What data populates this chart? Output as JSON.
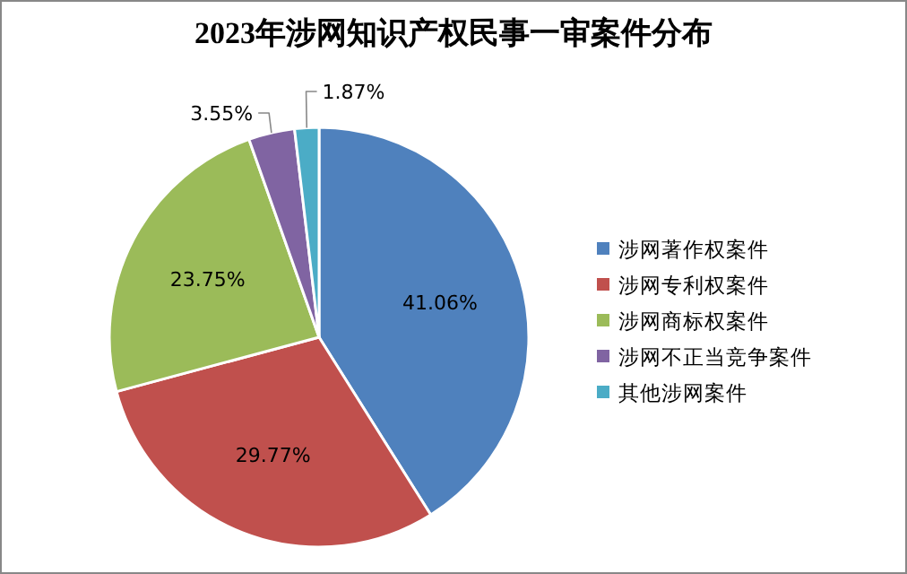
{
  "chart_data": {
    "type": "pie",
    "title": "2023年涉网知识产权民事一审案件分布",
    "categories": [
      "涉网著作权案件",
      "涉网专利权案件",
      "涉网商标权案件",
      "涉网不正当竞争案件",
      "其他涉网案件"
    ],
    "values": [
      41.06,
      29.77,
      23.75,
      3.55,
      1.87
    ],
    "colors": [
      "#4f81bd",
      "#c0504d",
      "#9bbb59",
      "#8064a2",
      "#4bacc6"
    ],
    "value_labels": [
      "41.06%",
      "29.77%",
      "23.75%",
      "3.55%",
      "1.87%"
    ],
    "legend": "right"
  }
}
